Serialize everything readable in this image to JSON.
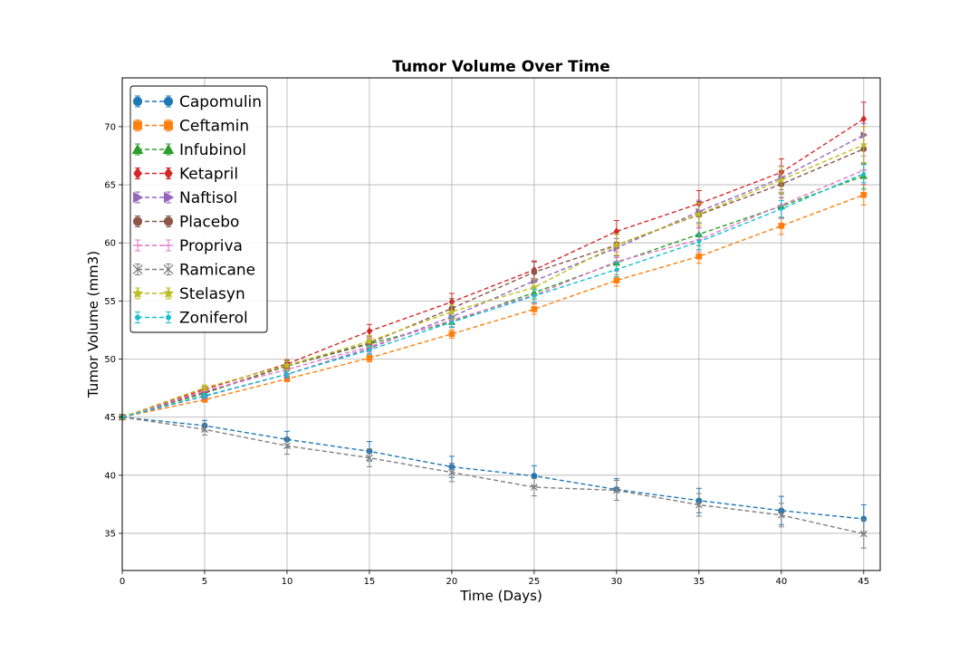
{
  "chart_data": {
    "type": "line",
    "title": "Tumor Volume Over Time",
    "xlabel": "Time (Days)",
    "ylabel": "Tumor Volume (mm3)",
    "xlim": [
      0,
      46
    ],
    "ylim": [
      31.8,
      74.2
    ],
    "xticks": [
      0,
      5,
      10,
      15,
      20,
      25,
      30,
      35,
      40,
      45
    ],
    "yticks": [
      35,
      40,
      45,
      50,
      55,
      60,
      65,
      70
    ],
    "grid": true,
    "legend_position": "top-left",
    "x": [
      0,
      5,
      10,
      15,
      20,
      25,
      30,
      35,
      40,
      45
    ],
    "series": [
      {
        "name": "Capomulin",
        "color": "#1f77b4",
        "marker": "circle",
        "values": [
          45.0,
          44.27,
          43.08,
          42.06,
          40.72,
          39.94,
          38.77,
          37.82,
          36.96,
          36.24
        ],
        "errors": [
          0,
          0.45,
          0.7,
          0.84,
          0.91,
          0.88,
          0.93,
          1.05,
          1.22,
          1.22
        ]
      },
      {
        "name": "Ceftamin",
        "color": "#ff7f0e",
        "marker": "square",
        "values": [
          45.0,
          46.5,
          48.29,
          50.09,
          52.16,
          54.29,
          56.77,
          58.83,
          61.47,
          64.13
        ],
        "errors": [
          0,
          0.16,
          0.24,
          0.33,
          0.36,
          0.44,
          0.49,
          0.59,
          0.75,
          0.87
        ]
      },
      {
        "name": "Infubinol",
        "color": "#2ca02c",
        "marker": "triangle-up",
        "values": [
          45.0,
          47.06,
          49.4,
          51.3,
          53.2,
          55.72,
          58.3,
          60.74,
          63.16,
          65.76
        ],
        "errors": [
          0,
          0.24,
          0.28,
          0.36,
          0.48,
          0.55,
          0.63,
          0.98,
          1.06,
          1.14
        ]
      },
      {
        "name": "Ketapril",
        "color": "#d62728",
        "marker": "diamond",
        "values": [
          45.0,
          47.39,
          49.58,
          52.4,
          54.92,
          57.68,
          60.99,
          63.37,
          66.07,
          70.66
        ],
        "errors": [
          0,
          0.26,
          0.36,
          0.58,
          0.73,
          0.76,
          0.93,
          1.13,
          1.16,
          1.45
        ]
      },
      {
        "name": "Naftisol",
        "color": "#9467bd",
        "marker": "triangle-right",
        "values": [
          45.0,
          46.8,
          48.69,
          50.93,
          53.64,
          56.73,
          59.56,
          62.69,
          65.6,
          69.27
        ],
        "errors": [
          0,
          0.2,
          0.34,
          0.47,
          0.56,
          0.72,
          0.81,
          0.98,
          1.02,
          1.01
        ]
      },
      {
        "name": "Placebo",
        "color": "#8c564b",
        "marker": "circle",
        "values": [
          45.0,
          47.13,
          49.42,
          51.36,
          54.36,
          57.48,
          59.81,
          62.42,
          65.05,
          68.08
        ],
        "errors": [
          0,
          0.22,
          0.4,
          0.61,
          0.84,
          0.88,
          0.93,
          1.13,
          1.16,
          1.29
        ]
      },
      {
        "name": "Propriva",
        "color": "#e377c2",
        "marker": "tick",
        "values": [
          45.0,
          47.25,
          49.1,
          51.07,
          53.35,
          55.5,
          58.39,
          60.27,
          63.24,
          66.26
        ],
        "errors": [
          0,
          0.23,
          0.38,
          0.47,
          0.56,
          0.7,
          0.84,
          1.05,
          1.12,
          1.22
        ]
      },
      {
        "name": "Ramicane",
        "color": "#7f7f7f",
        "marker": "x",
        "values": [
          45.0,
          43.94,
          42.53,
          41.5,
          40.24,
          38.97,
          38.7,
          37.45,
          36.57,
          34.96
        ],
        "errors": [
          0,
          0.48,
          0.72,
          0.77,
          0.79,
          0.75,
          0.86,
          0.97,
          1.01,
          1.23
        ]
      },
      {
        "name": "Stelasyn",
        "color": "#bcbd22",
        "marker": "star",
        "values": [
          45.0,
          47.53,
          49.46,
          51.53,
          54.07,
          56.17,
          59.83,
          62.47,
          65.42,
          68.44
        ],
        "errors": [
          0,
          0.24,
          0.43,
          0.49,
          0.62,
          0.74,
          0.9,
          0.94,
          1.13,
          1.57
        ]
      },
      {
        "name": "Zoniferol",
        "color": "#17becf",
        "marker": "point",
        "values": [
          45.0,
          46.85,
          48.69,
          50.78,
          53.17,
          55.43,
          57.71,
          60.09,
          62.92,
          65.96
        ],
        "errors": [
          0,
          0.19,
          0.26,
          0.36,
          0.44,
          0.56,
          0.63,
          0.68,
          0.73,
          0.78
        ]
      }
    ]
  }
}
